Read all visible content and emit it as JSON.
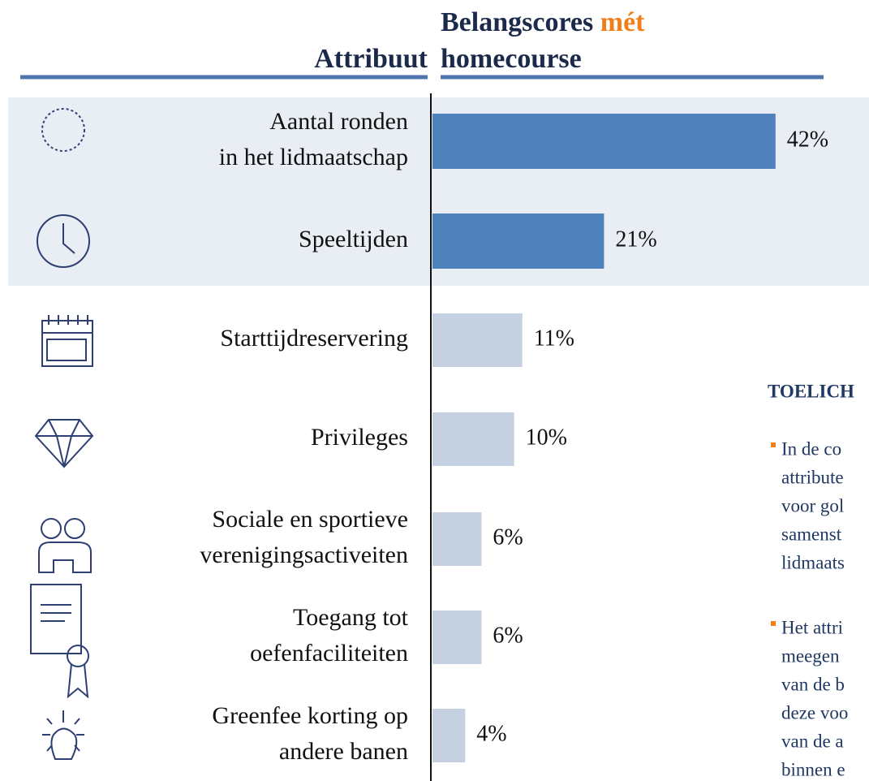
{
  "chart_data": {
    "type": "barh",
    "title_left": "Attribuut",
    "title_right": [
      "Belangscores",
      "mét",
      "homecourse"
    ],
    "categories": [
      [
        "Aantal ronden",
        "in het lidmaatschap"
      ],
      [
        "Speeltijden"
      ],
      [
        "Starttijdreservering"
      ],
      [
        "Privileges"
      ],
      [
        "Sociale en sportieve",
        "verenigingsactiveiten"
      ],
      [
        "Toegang tot",
        "oefenfaciliteiten"
      ],
      [
        "Greenfee korting op",
        "andere banen"
      ]
    ],
    "values": [
      42,
      21,
      11,
      10,
      6,
      6,
      4
    ],
    "value_labels": [
      "42%",
      "21%",
      "11%",
      "10%",
      "6%",
      "6%",
      "4%"
    ],
    "colors": [
      "#4f81bd",
      "#4f81bd",
      "#c5d0e1",
      "#c5d0e1",
      "#c5d0e1",
      "#c5d0e1",
      "#c5d0e1"
    ],
    "xlim": [
      0,
      45
    ]
  },
  "side_note": {
    "title": "TOELICH",
    "bullets": [
      [
        "In de co",
        "attribute",
        "voor gol",
        "samenst",
        "lidmaats"
      ],
      [
        "Het attri",
        "meegen",
        "van de b",
        "deze voo",
        "van de a",
        "binnen e"
      ]
    ]
  }
}
